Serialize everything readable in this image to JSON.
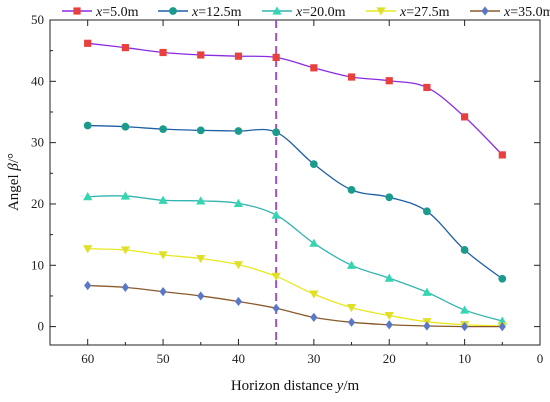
{
  "chart_data": {
    "type": "line",
    "xlabel": "Horizon distance y/m",
    "xlabel_parts": [
      "Horizon distance ",
      "y",
      "/m"
    ],
    "ylabel": "Angel β/°",
    "ylabel_parts": [
      "Angel ",
      "β",
      "/°"
    ],
    "xlim": [
      65,
      0
    ],
    "ylim": [
      -3,
      50
    ],
    "x_ticks": [
      60,
      50,
      40,
      30,
      20,
      10,
      0
    ],
    "y_ticks": [
      0,
      10,
      20,
      30,
      40,
      50
    ],
    "grid": false,
    "legend_position": "top",
    "reference_line": {
      "x": 35,
      "style": "dashed",
      "color": "#a050c8"
    },
    "x": [
      60,
      55,
      50,
      45,
      40,
      35,
      30,
      25,
      20,
      15,
      10,
      5
    ],
    "series": [
      {
        "name": "x=5.0m",
        "name_parts": [
          "x",
          "=5.0m"
        ],
        "color": "#e8413d",
        "line_color": "#8a2be2",
        "marker": "square",
        "values": [
          46.2,
          45.5,
          44.7,
          44.3,
          44.1,
          43.9,
          42.2,
          40.7,
          40.1,
          39.0,
          34.2,
          28.0
        ]
      },
      {
        "name": "x=12.5m",
        "name_parts": [
          "x",
          "=12.5m"
        ],
        "color": "#1a9b8c",
        "line_color": "#1f5fa8",
        "marker": "circle",
        "values": [
          32.8,
          32.6,
          32.2,
          32.0,
          31.9,
          31.7,
          26.5,
          22.3,
          21.1,
          18.8,
          12.5,
          7.8
        ]
      },
      {
        "name": "x=20.0m",
        "name_parts": [
          "x",
          "=20.0m"
        ],
        "color": "#34d6b2",
        "line_color": "#34b4b0",
        "marker": "triangle-up",
        "values": [
          21.2,
          21.3,
          20.6,
          20.5,
          20.1,
          18.2,
          13.6,
          10.0,
          7.9,
          5.6,
          2.7,
          0.9
        ]
      },
      {
        "name": "x=27.5m",
        "name_parts": [
          "x",
          "=27.5m"
        ],
        "color": "#e0e02a",
        "line_color": "#e8e820",
        "marker": "triangle-down",
        "values": [
          12.7,
          12.5,
          11.7,
          11.1,
          10.1,
          8.2,
          5.3,
          3.1,
          1.8,
          0.8,
          0.3,
          0.1
        ]
      },
      {
        "name": "x=35.0m",
        "name_parts": [
          "x",
          "=35.0m"
        ],
        "color": "#5a78c8",
        "line_color": "#8a5a2a",
        "marker": "diamond",
        "values": [
          6.7,
          6.4,
          5.7,
          5.0,
          4.1,
          3.0,
          1.5,
          0.7,
          0.3,
          0.1,
          0.0,
          0.0
        ]
      }
    ]
  }
}
